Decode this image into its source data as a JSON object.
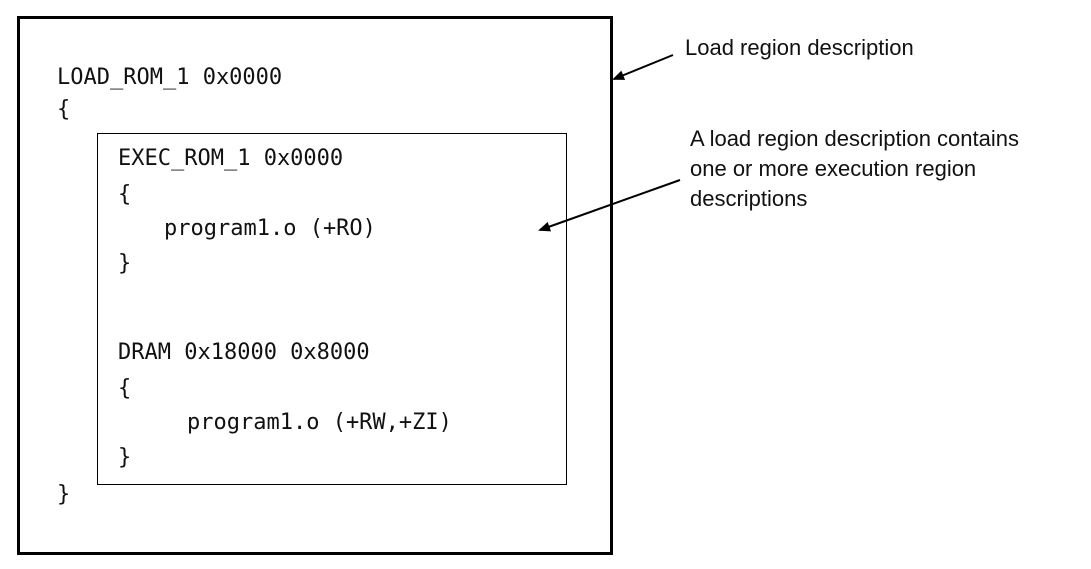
{
  "load_region": {
    "header": "LOAD_ROM_1 0x0000",
    "open_brace": "{",
    "close_brace": "}"
  },
  "exec_regions": [
    {
      "header": "EXEC_ROM_1 0x0000",
      "open_brace": "{",
      "content": "program1.o (+RO)",
      "close_brace": "}"
    },
    {
      "header": "DRAM 0x18000 0x8000",
      "open_brace": "{",
      "content": "program1.o (+RW,+ZI)",
      "close_brace": "}"
    }
  ],
  "annotations": {
    "load_region_label": "Load region description",
    "exec_region_label_lines": [
      "A load region description contains",
      "one or more execution region",
      "descriptions"
    ]
  }
}
